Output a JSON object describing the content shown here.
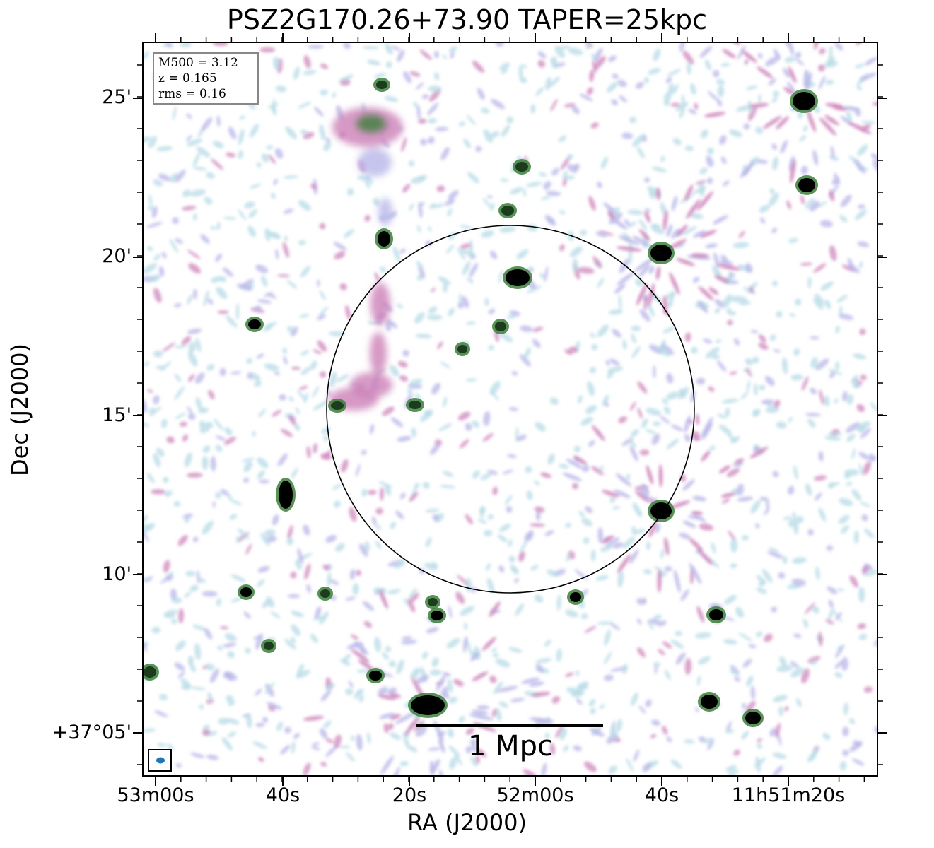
{
  "figure": {
    "title": "PSZ2G170.26+73.90 TAPER=25kpc",
    "xlabel": "RA (J2000)",
    "ylabel": "Dec (J2000)",
    "info_box": [
      "M500 = 3.12",
      "z = 0.165",
      "rms = 0.16"
    ],
    "scale_bar_label": "1 Mpc",
    "x_ticks": [
      "53m00s",
      "40s",
      "20s",
      "52m00s",
      "40s",
      "11h51m20s"
    ],
    "y_ticks": [
      "25'",
      "20'",
      "15'",
      "10'",
      "+37°05'"
    ]
  },
  "colors": {
    "faint": "#b7dbe6",
    "mid": "#b8b5e8",
    "pink": "#cc7fb8",
    "green": "#3b7f3a",
    "source": "#000000"
  },
  "icons": [
    "beam-ellipse-icon"
  ]
}
